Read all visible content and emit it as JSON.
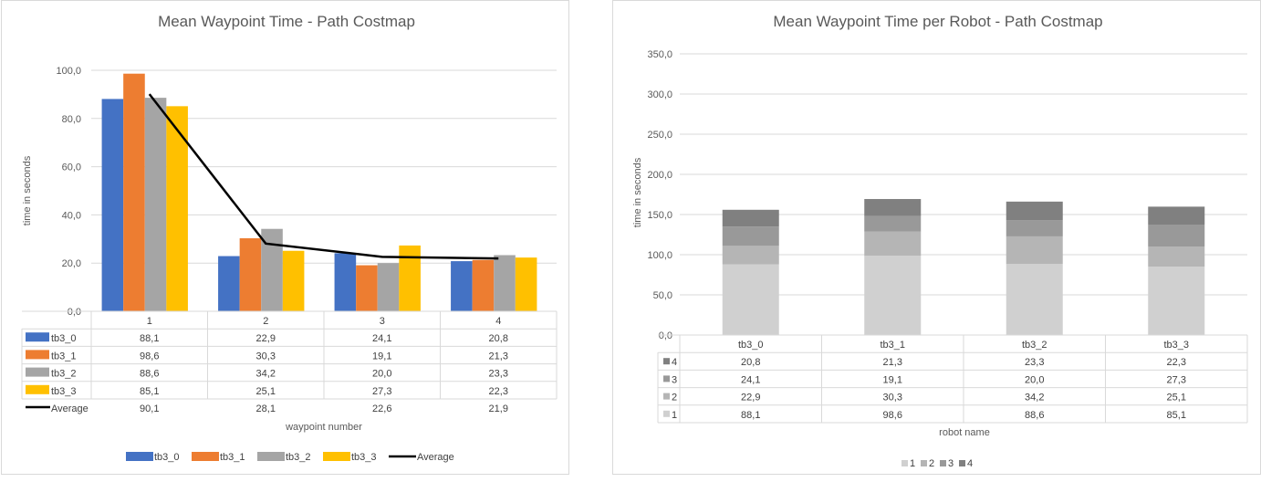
{
  "chart_data": [
    {
      "type": "bar",
      "title": "Mean Waypoint Time - Path Costmap",
      "xlabel": "waypoint number",
      "ylabel": "time in seconds",
      "ylim": [
        0,
        100
      ],
      "yticks": [
        "0,0",
        "20,0",
        "40,0",
        "60,0",
        "80,0",
        "100,0"
      ],
      "categories": [
        "1",
        "2",
        "3",
        "4"
      ],
      "series": [
        {
          "name": "tb3_0",
          "color": "#4472C4",
          "values": [
            88.1,
            22.9,
            24.1,
            20.8
          ],
          "labels": [
            "88,1",
            "22,9",
            "24,1",
            "20,8"
          ]
        },
        {
          "name": "tb3_1",
          "color": "#ED7D31",
          "values": [
            98.6,
            30.3,
            19.1,
            21.3
          ],
          "labels": [
            "98,6",
            "30,3",
            "19,1",
            "21,3"
          ]
        },
        {
          "name": "tb3_2",
          "color": "#A5A5A5",
          "values": [
            88.6,
            34.2,
            20.0,
            23.3
          ],
          "labels": [
            "88,6",
            "34,2",
            "20,0",
            "23,3"
          ]
        },
        {
          "name": "tb3_3",
          "color": "#FFC000",
          "values": [
            85.1,
            25.1,
            27.3,
            22.3
          ],
          "labels": [
            "85,1",
            "25,1",
            "27,3",
            "22,3"
          ]
        }
      ],
      "line": {
        "name": "Average",
        "color": "#000000",
        "values": [
          90.1,
          28.1,
          22.6,
          21.9
        ],
        "labels": [
          "90,1",
          "28,1",
          "22,6",
          "21,9"
        ]
      },
      "legend": "bottom",
      "grid": true
    },
    {
      "type": "bar",
      "stacked": true,
      "title": "Mean Waypoint Time per Robot -  Path Costmap",
      "xlabel": "robot name",
      "ylabel": "time in seconds",
      "ylim": [
        0,
        350
      ],
      "yticks": [
        "0,0",
        "50,0",
        "100,0",
        "150,0",
        "200,0",
        "250,0",
        "300,0",
        "350,0"
      ],
      "categories": [
        "tb3_0",
        "tb3_1",
        "tb3_2",
        "tb3_3"
      ],
      "series": [
        {
          "name": "1",
          "color": "#D0D0D0",
          "values": [
            88.1,
            98.6,
            88.6,
            85.1
          ],
          "labels": [
            "88,1",
            "98,6",
            "88,6",
            "85,1"
          ]
        },
        {
          "name": "2",
          "color": "#B5B5B5",
          "values": [
            22.9,
            30.3,
            34.2,
            25.1
          ],
          "labels": [
            "22,9",
            "30,3",
            "34,2",
            "25,1"
          ]
        },
        {
          "name": "3",
          "color": "#999999",
          "values": [
            24.1,
            19.1,
            20.0,
            27.3
          ],
          "labels": [
            "24,1",
            "19,1",
            "20,0",
            "27,3"
          ]
        },
        {
          "name": "4",
          "color": "#808080",
          "values": [
            20.8,
            21.3,
            23.3,
            22.3
          ],
          "labels": [
            "20,8",
            "21,3",
            "23,3",
            "22,3"
          ]
        }
      ],
      "legend": "bottom",
      "grid": true
    }
  ]
}
